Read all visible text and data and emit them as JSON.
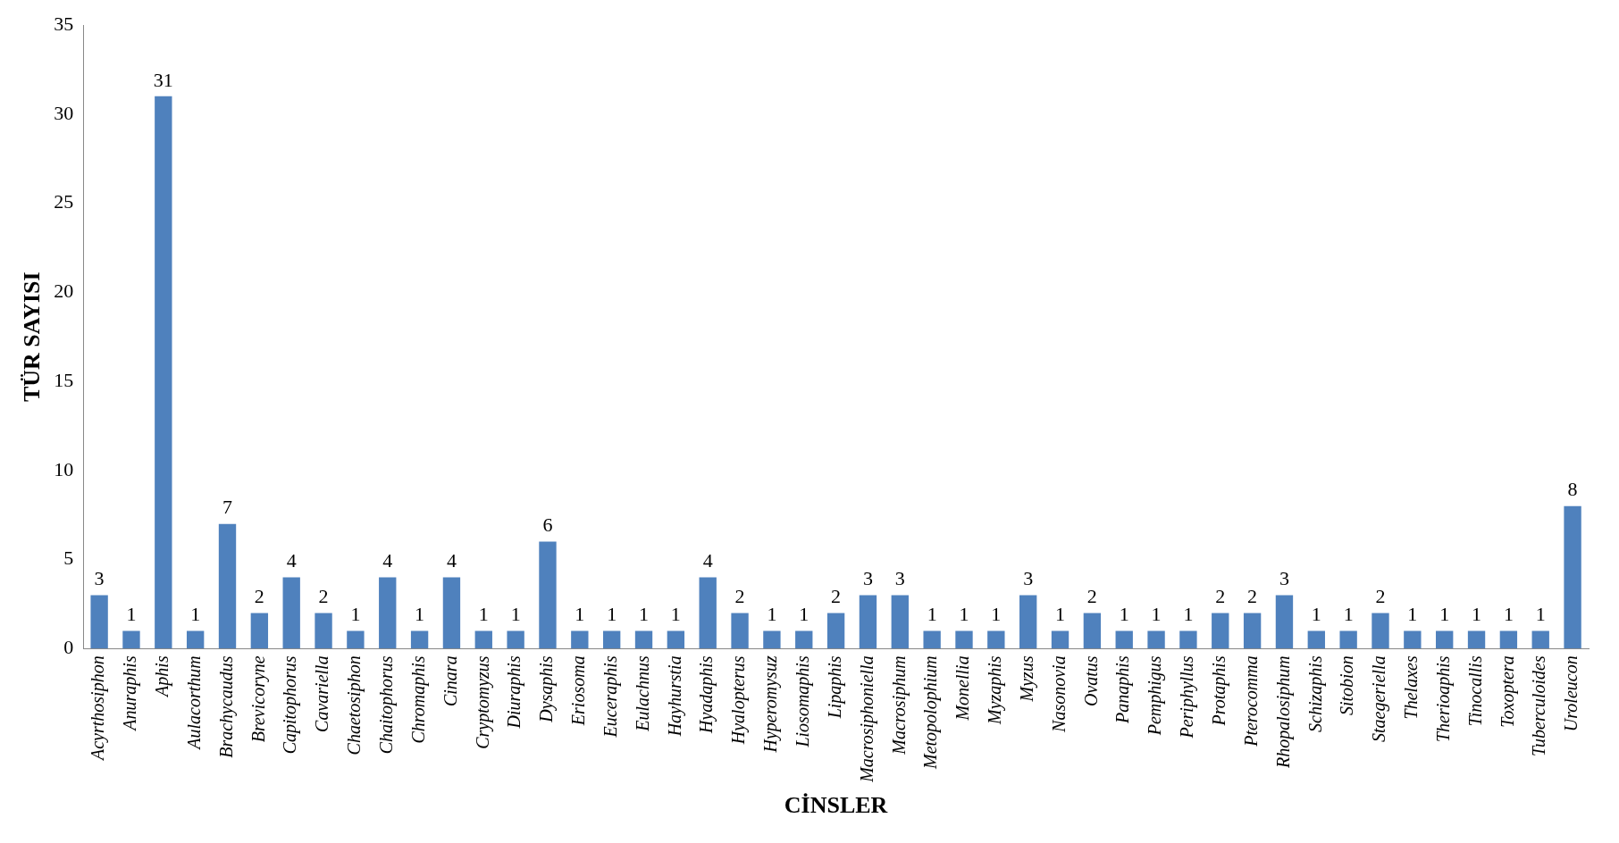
{
  "chart_data": {
    "type": "bar",
    "xlabel": "CİNSLER",
    "ylabel": "TÜR SAYISI",
    "categories": [
      "Acyrthosiphon",
      "Anuraphis",
      "Aphis",
      "Aulacorthum",
      "Brachycaudus",
      "Brevicoryne",
      "Capitophorus",
      "Cavariella",
      "Chaetosiphon",
      "Chaitophorus",
      "Chromaphis",
      "Cinara",
      "Cryptomyzus",
      "Diuraphis",
      "Dysaphis",
      "Eriosoma",
      "Euceraphis",
      "Eulachnus",
      "Hayhurstia",
      "Hyadaphis",
      "Hyalopterus",
      "Hyperomysuz",
      "Liosomaphis",
      "Lipaphis",
      "Macrosiphoniella",
      "Macrosiphum",
      "Metopolophium",
      "Monellia",
      "Myzaphis",
      "Myzus",
      "Nasonovia",
      "Ovatus",
      "Panaphis",
      "Pemphigus",
      "Periphyllus",
      "Protaphis",
      "Pterocomma",
      "Rhopalosiphum",
      "Schizaphis",
      "Sitobion",
      "Staegeriella",
      "Thelaxes",
      "Therioaphis",
      "Tinocallis",
      "Toxoptera",
      "Tuberculoides",
      "Uroleucon"
    ],
    "values": [
      3,
      1,
      31,
      1,
      7,
      2,
      4,
      2,
      1,
      4,
      1,
      4,
      1,
      1,
      6,
      1,
      1,
      1,
      1,
      4,
      2,
      1,
      1,
      2,
      3,
      3,
      1,
      1,
      1,
      3,
      1,
      2,
      1,
      1,
      1,
      2,
      2,
      3,
      1,
      1,
      2,
      1,
      1,
      1,
      1,
      1,
      8
    ],
    "color": "#4f81bd",
    "ylim": [
      0,
      35
    ],
    "yticks": [
      0,
      5,
      10,
      15,
      20,
      25,
      30,
      35
    ],
    "grid": false,
    "legend": false,
    "data_labels": true
  }
}
